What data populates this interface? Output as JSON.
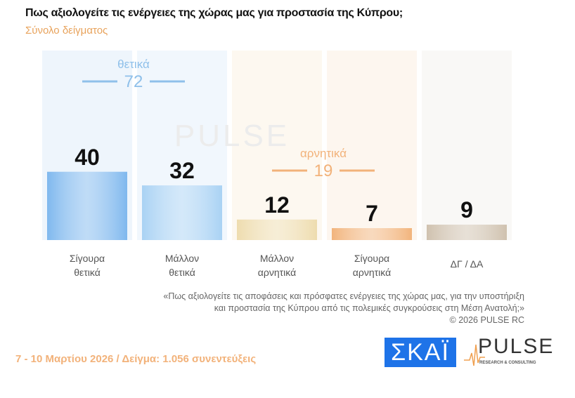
{
  "chart_data": {
    "type": "bar",
    "title": "Πως αξιολογείτε τις ενέργειες της χώρας μας για προστασία της Κύπρου;",
    "subtitle": "Σύνολο δείγματος",
    "categories": [
      "Σίγουρα θετικά",
      "Μάλλον θετικά",
      "Μάλλον αρνητικά",
      "Σίγουρα αρνητικά",
      "ΔΓ / ΔΑ"
    ],
    "category_lines": [
      [
        "Σίγουρα",
        "θετικά"
      ],
      [
        "Μάλλον",
        "θετικά"
      ],
      [
        "Μάλλον",
        "αρνητικά"
      ],
      [
        "Σίγουρα",
        "αρνητικά"
      ],
      [
        "ΔΓ / ΔΑ",
        ""
      ]
    ],
    "values": [
      40,
      32,
      12,
      7,
      9
    ],
    "colors": [
      "#7fb8ee",
      "#a9d2f4",
      "#eedcae",
      "#f2b47c",
      "#cfc1ae"
    ],
    "groups": [
      {
        "label": "θετικά",
        "value": "72",
        "color": "#8fc0ea"
      },
      {
        "label": "αρνητικά",
        "value": "19",
        "color": "#f2b27a"
      }
    ],
    "ylim": [
      0,
      100
    ],
    "grid": false
  },
  "note": {
    "line1": "«Πως αξιολογείτε τις αποφάσεις και πρόσφατες ενέργειες της χώρας μας, για την υποστήριξη",
    "line2": "και προστασία της Κύπρου από τις πολεμικές συγκρούσεις στη Μέση Ανατολή;»",
    "copyright": "©  2026  PULSE RC"
  },
  "footer": "7 - 10  Μαρτίου 2026  /  Δείγμα:  1.056 συνεντεύξεις",
  "logos": {
    "skai": "ΣΚΑΪ",
    "pulse": "PULSE",
    "pulse_sub": "RESEARCH & CONSULTING",
    "watermark": "PULSE"
  }
}
